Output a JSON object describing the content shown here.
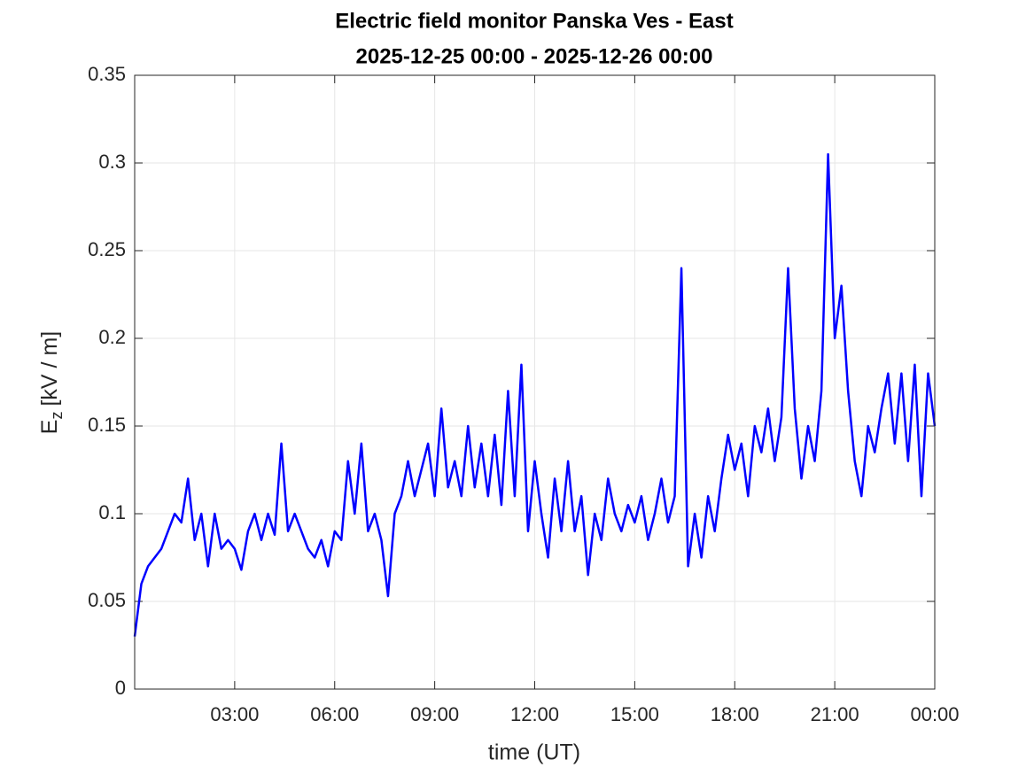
{
  "chart_data": {
    "type": "line",
    "title": [
      "Electric field monitor Panska Ves - East",
      "2025-12-25 00:00 - 2025-12-26 00:00"
    ],
    "xlabel": "time (UT)",
    "ylabel": [
      "E",
      "z",
      "[kV / m]"
    ],
    "xlim": [
      0,
      24
    ],
    "xticks": [
      {
        "value": 3,
        "label": "03:00"
      },
      {
        "value": 6,
        "label": "06:00"
      },
      {
        "value": 9,
        "label": "09:00"
      },
      {
        "value": 12,
        "label": "12:00"
      },
      {
        "value": 15,
        "label": "15:00"
      },
      {
        "value": 18,
        "label": "18:00"
      },
      {
        "value": 21,
        "label": "21:00"
      },
      {
        "value": 24,
        "label": "00:00"
      }
    ],
    "ylim": [
      0,
      0.35
    ],
    "yticks": [
      0,
      0.05,
      0.1,
      0.15,
      0.2,
      0.25,
      0.3,
      0.35
    ],
    "grid": true,
    "x": [
      0,
      0.2,
      0.4,
      0.6,
      0.8,
      1,
      1.2,
      1.4,
      1.6,
      1.8,
      2,
      2.2,
      2.4,
      2.6,
      2.8,
      3,
      3.2,
      3.4,
      3.6,
      3.8,
      4,
      4.2,
      4.4,
      4.6,
      4.8,
      5,
      5.2,
      5.4,
      5.6,
      5.8,
      6,
      6.2,
      6.4,
      6.6,
      6.8,
      7,
      7.2,
      7.4,
      7.6,
      7.8,
      8,
      8.2,
      8.4,
      8.6,
      8.8,
      9,
      9.2,
      9.4,
      9.6,
      9.8,
      10,
      10.2,
      10.4,
      10.6,
      10.8,
      11,
      11.2,
      11.4,
      11.6,
      11.8,
      12,
      12.2,
      12.4,
      12.6,
      12.8,
      13,
      13.2,
      13.4,
      13.6,
      13.8,
      14,
      14.2,
      14.4,
      14.6,
      14.8,
      15,
      15.2,
      15.4,
      15.6,
      15.8,
      16,
      16.2,
      16.4,
      16.6,
      16.8,
      17,
      17.2,
      17.4,
      17.6,
      17.8,
      18,
      18.2,
      18.4,
      18.6,
      18.8,
      19,
      19.2,
      19.4,
      19.6,
      19.8,
      20,
      20.2,
      20.4,
      20.6,
      20.8,
      21,
      21.2,
      21.4,
      21.6,
      21.8,
      22,
      22.2,
      22.4,
      22.6,
      22.8,
      23,
      23.2,
      23.4,
      23.6,
      23.8,
      24
    ],
    "series": [
      {
        "color": "#0000ff",
        "values": [
          0.03,
          0.06,
          0.07,
          0.075,
          0.08,
          0.09,
          0.1,
          0.095,
          0.12,
          0.085,
          0.1,
          0.07,
          0.1,
          0.08,
          0.085,
          0.08,
          0.068,
          0.09,
          0.1,
          0.085,
          0.1,
          0.088,
          0.14,
          0.09,
          0.1,
          0.09,
          0.08,
          0.075,
          0.085,
          0.07,
          0.09,
          0.085,
          0.13,
          0.1,
          0.14,
          0.09,
          0.1,
          0.085,
          0.053,
          0.1,
          0.11,
          0.13,
          0.11,
          0.125,
          0.14,
          0.11,
          0.16,
          0.115,
          0.13,
          0.11,
          0.15,
          0.115,
          0.14,
          0.11,
          0.145,
          0.105,
          0.17,
          0.11,
          0.185,
          0.09,
          0.13,
          0.1,
          0.075,
          0.12,
          0.09,
          0.13,
          0.09,
          0.11,
          0.065,
          0.1,
          0.085,
          0.12,
          0.1,
          0.09,
          0.105,
          0.095,
          0.11,
          0.085,
          0.1,
          0.12,
          0.095,
          0.11,
          0.24,
          0.07,
          0.1,
          0.075,
          0.11,
          0.09,
          0.12,
          0.145,
          0.125,
          0.14,
          0.11,
          0.15,
          0.135,
          0.16,
          0.13,
          0.155,
          0.24,
          0.16,
          0.12,
          0.15,
          0.13,
          0.17,
          0.305,
          0.2,
          0.23,
          0.17,
          0.13,
          0.11,
          0.15,
          0.135,
          0.16,
          0.18,
          0.14,
          0.18,
          0.13,
          0.185,
          0.11,
          0.18,
          0.15
        ]
      }
    ]
  }
}
